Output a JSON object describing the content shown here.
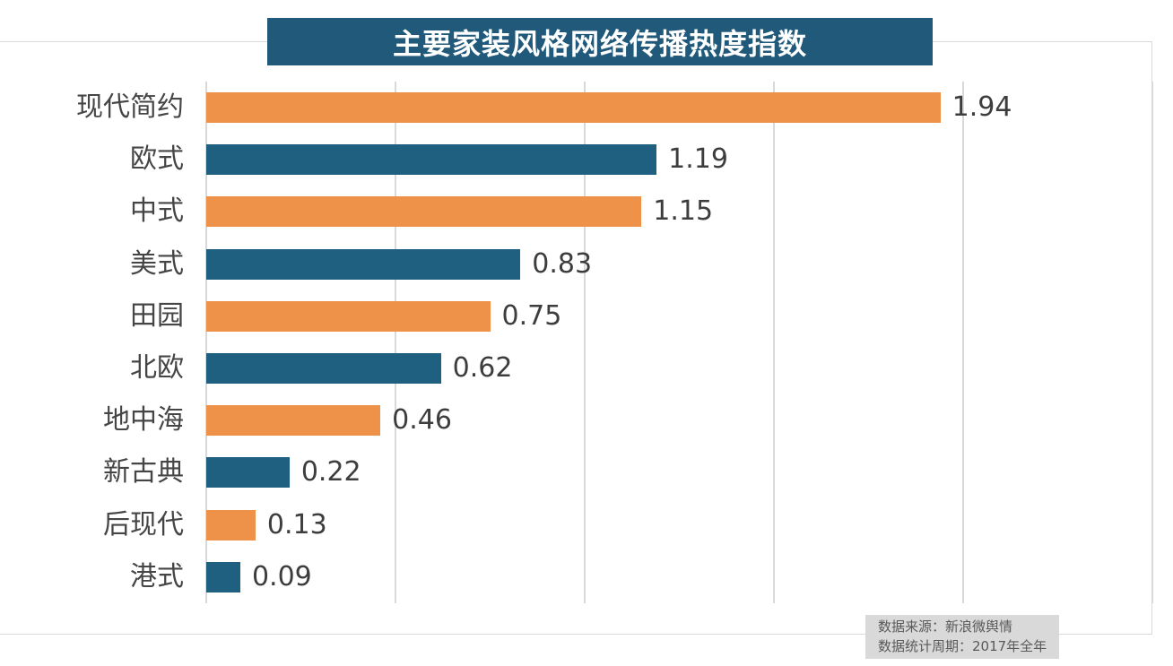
{
  "title": "主要家装风格网络传播热度指数",
  "chart_data": {
    "type": "bar",
    "orientation": "horizontal",
    "title": "主要家装风格网络传播热度指数",
    "categories": [
      "现代简约",
      "欧式",
      "中式",
      "美式",
      "田园",
      "北欧",
      "地中海",
      "新古典",
      "后现代",
      "港式"
    ],
    "values": [
      1.94,
      1.19,
      1.15,
      0.83,
      0.75,
      0.62,
      0.46,
      0.22,
      0.13,
      0.09
    ],
    "value_labels": [
      "1.94",
      "1.19",
      "1.15",
      "0.83",
      "0.75",
      "0.62",
      "0.46",
      "0.22",
      "0.13",
      "0.09"
    ],
    "xlabel": "",
    "ylabel": "",
    "xlim": [
      0,
      2.5
    ],
    "gridline_ticks": [
      0,
      0.5,
      1.0,
      1.5,
      2.0,
      2.5
    ],
    "grid": true,
    "legend": "none",
    "bar_color_odd_rows": "#ee9149",
    "bar_color_even_rows": "#1f5f80"
  },
  "footer": {
    "source": "数据来源：新浪微舆情",
    "period": "数据统计周期：2017年全年"
  },
  "colors": {
    "background": "#ffffff",
    "title_bg": "#21597a",
    "title_text": "#ffffff",
    "bar_orange": "#ee9149",
    "bar_teal": "#1f5f80",
    "grid_line": "#d9d9d9",
    "frame_line": "#d9d9d9",
    "category_text": "#454545",
    "value_text": "#3d3d3d",
    "footer_bg": "#d9d9d9",
    "footer_text": "#595959"
  }
}
